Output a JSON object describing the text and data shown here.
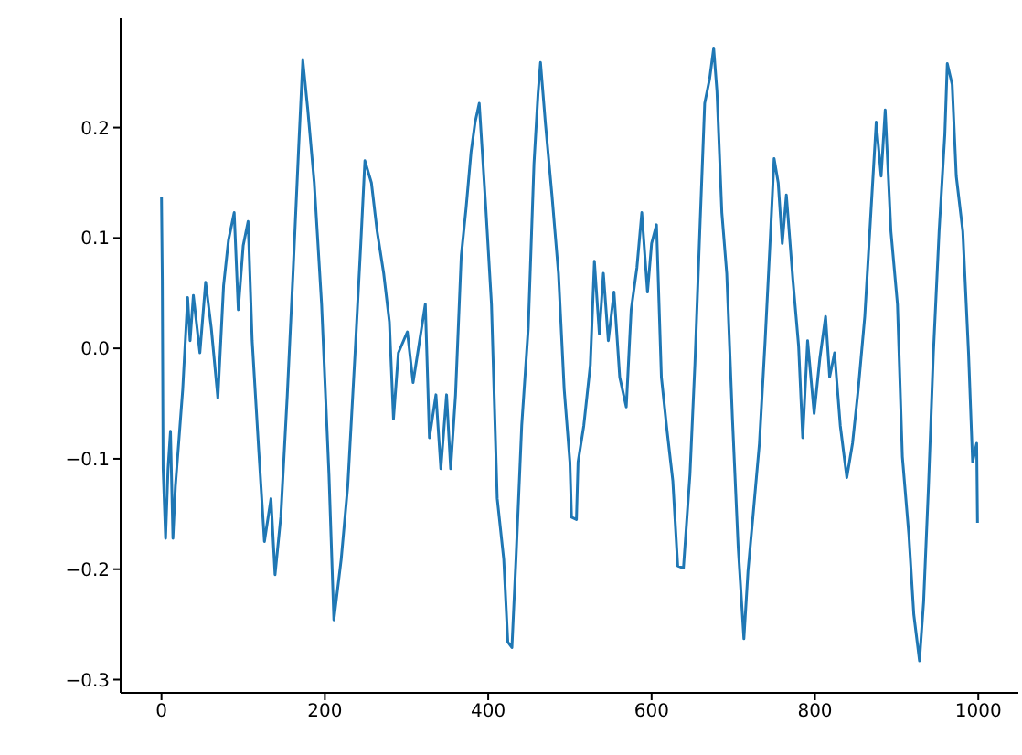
{
  "chart_data": {
    "type": "line",
    "xlim": [
      -50,
      1049
    ],
    "ylim": [
      -0.312,
      0.299
    ],
    "xticks": [
      0,
      200,
      400,
      600,
      800,
      1000
    ],
    "yticks": [
      {
        "value": -0.3,
        "label": "−0.3"
      },
      {
        "value": -0.2,
        "label": "−0.2"
      },
      {
        "value": -0.1,
        "label": "−0.1"
      },
      {
        "value": 0,
        "label": "0.0"
      },
      {
        "value": 0.1,
        "label": "0.1"
      },
      {
        "value": 0.2,
        "label": "0.2"
      }
    ],
    "grid": false,
    "legend": false,
    "series": [
      {
        "color": "#1f77b4",
        "x": [
          0,
          1,
          2,
          5,
          8,
          11,
          14,
          17,
          21,
          26,
          32,
          35,
          39,
          47,
          54,
          61,
          69,
          76,
          82,
          89,
          94,
          100,
          106,
          111,
          119,
          126,
          134,
          139,
          146,
          154,
          161,
          168,
          173,
          179,
          187,
          196,
          205,
          211,
          220,
          228,
          237,
          244,
          249,
          257,
          264,
          272,
          279,
          284,
          290,
          301,
          308,
          316,
          323,
          328,
          336,
          342,
          349,
          354,
          360,
          367,
          373,
          379,
          384,
          389,
          397,
          404,
          411,
          419,
          424,
          429,
          434,
          441,
          449,
          456,
          461,
          464,
          470,
          478,
          486,
          493,
          500,
          502,
          508,
          510,
          517,
          525,
          530,
          536,
          541,
          547,
          554,
          561,
          569,
          575,
          582,
          588,
          595,
          600,
          606,
          612,
          619,
          626,
          632,
          639,
          647,
          653,
          659,
          665,
          671,
          676,
          680,
          686,
          692,
          699,
          706,
          713,
          718,
          724,
          732,
          739,
          745,
          750,
          755,
          760,
          765,
          773,
          780,
          785,
          791,
          799,
          806,
          813,
          818,
          824,
          831,
          839,
          846,
          853,
          861,
          868,
          875,
          881,
          886,
          893,
          901,
          907,
          915,
          921,
          928,
          933,
          939,
          945,
          952,
          959,
          962,
          968,
          973,
          981,
          988,
          993,
          998,
          999
        ],
        "values": [
          0.137,
          0.062,
          -0.109,
          -0.172,
          -0.109,
          -0.075,
          -0.172,
          -0.125,
          -0.086,
          -0.037,
          0.046,
          0.007,
          0.048,
          -0.004,
          0.06,
          0.018,
          -0.045,
          0.057,
          0.098,
          0.123,
          0.035,
          0.093,
          0.115,
          0.007,
          -0.092,
          -0.175,
          -0.136,
          -0.205,
          -0.153,
          -0.042,
          0.068,
          0.183,
          0.261,
          0.217,
          0.15,
          0.04,
          -0.114,
          -0.246,
          -0.191,
          -0.125,
          -0.004,
          0.095,
          0.17,
          0.15,
          0.106,
          0.068,
          0.024,
          -0.064,
          -0.004,
          0.015,
          -0.031,
          0.007,
          0.04,
          -0.081,
          -0.042,
          -0.109,
          -0.042,
          -0.109,
          -0.042,
          0.084,
          0.128,
          0.178,
          0.205,
          0.222,
          0.128,
          0.04,
          -0.136,
          -0.191,
          -0.266,
          -0.271,
          -0.191,
          -0.07,
          0.018,
          0.167,
          0.231,
          0.259,
          0.204,
          0.139,
          0.068,
          -0.037,
          -0.103,
          -0.153,
          -0.155,
          -0.103,
          -0.07,
          -0.015,
          0.079,
          0.013,
          0.068,
          0.007,
          0.051,
          -0.026,
          -0.053,
          0.035,
          0.073,
          0.123,
          0.051,
          0.095,
          0.112,
          -0.026,
          -0.075,
          -0.12,
          -0.197,
          -0.199,
          -0.114,
          -0.015,
          0.106,
          0.222,
          0.244,
          0.272,
          0.233,
          0.123,
          0.068,
          -0.064,
          -0.18,
          -0.263,
          -0.202,
          -0.153,
          -0.086,
          0.007,
          0.095,
          0.172,
          0.15,
          0.095,
          0.139,
          0.062,
          0.002,
          -0.081,
          0.007,
          -0.059,
          -0.009,
          0.029,
          -0.026,
          -0.004,
          -0.07,
          -0.117,
          -0.086,
          -0.037,
          0.029,
          0.117,
          0.205,
          0.156,
          0.216,
          0.106,
          0.04,
          -0.098,
          -0.169,
          -0.241,
          -0.283,
          -0.23,
          -0.125,
          -0.004,
          0.106,
          0.194,
          0.258,
          0.239,
          0.156,
          0.106,
          -0.004,
          -0.103,
          -0.086,
          -0.158
        ]
      }
    ]
  }
}
